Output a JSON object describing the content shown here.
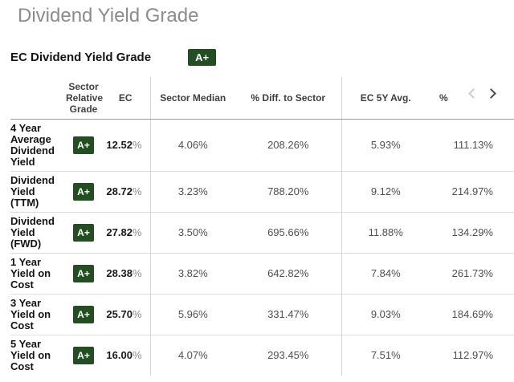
{
  "page": {
    "title": "Dividend Yield Grade"
  },
  "section": {
    "title": "EC Dividend Yield Grade",
    "overall_grade": "A+"
  },
  "colors": {
    "grade_badge_bg": "#224e22",
    "grade_badge_text": "#ffffff"
  },
  "labels": {
    "percent": "%"
  },
  "scroll_controls": {
    "prev_enabled": false,
    "next_enabled": true
  },
  "table": {
    "headers": [
      "",
      "Sector Relative Grade",
      "EC",
      "Sector Median",
      "% Diff. to Sector",
      "EC 5Y Avg.",
      "%"
    ],
    "rows": [
      {
        "label": "4 Year Average Dividend Yield",
        "grade": "A+",
        "ec": "12.52",
        "sector_median": "4.06%",
        "diff_to_sector": "208.26%",
        "ec_5y_avg": "5.93%",
        "pct_diff_5y": "111.13%"
      },
      {
        "label": "Dividend Yield (TTM)",
        "grade": "A+",
        "ec": "28.72",
        "sector_median": "3.23%",
        "diff_to_sector": "788.20%",
        "ec_5y_avg": "9.12%",
        "pct_diff_5y": "214.97%"
      },
      {
        "label": "Dividend Yield (FWD)",
        "grade": "A+",
        "ec": "27.82",
        "sector_median": "3.50%",
        "diff_to_sector": "695.66%",
        "ec_5y_avg": "11.88%",
        "pct_diff_5y": "134.29%"
      },
      {
        "label": "1 Year Yield on Cost",
        "grade": "A+",
        "ec": "28.38",
        "sector_median": "3.82%",
        "diff_to_sector": "642.82%",
        "ec_5y_avg": "7.84%",
        "pct_diff_5y": "261.73%"
      },
      {
        "label": "3 Year Yield on Cost",
        "grade": "A+",
        "ec": "25.70",
        "sector_median": "5.96%",
        "diff_to_sector": "331.47%",
        "ec_5y_avg": "9.03%",
        "pct_diff_5y": "184.69%"
      },
      {
        "label": "5 Year Yield on Cost",
        "grade": "A+",
        "ec": "16.00",
        "sector_median": "4.07%",
        "diff_to_sector": "293.45%",
        "ec_5y_avg": "7.51%",
        "pct_diff_5y": "112.97%"
      }
    ]
  }
}
